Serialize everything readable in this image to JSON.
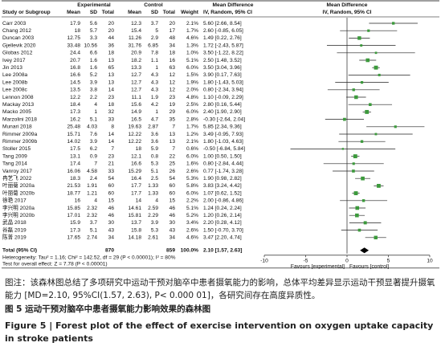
{
  "header": {
    "group_exp": "Experimental",
    "group_ctrl": "Control",
    "md_title": "Mean Difference",
    "md_plot_title": "Mean Difference",
    "columns": [
      "Study or Subgroup",
      "Mean",
      "SD",
      "Total",
      "Mean",
      "SD",
      "Total",
      "Weight",
      "IV, Random, 95% CI"
    ],
    "plot_subtitle": "IV, Random, 95% CI"
  },
  "table": {
    "rows": [
      {
        "cells": [
          "Carr 2003",
          "17.9",
          "5.6",
          "20",
          "12.3",
          "3.7",
          "20",
          "2.1%",
          "5.60 [2.66, 8.54]"
        ],
        "md": 5.6,
        "ci": [
          2.66,
          8.54
        ],
        "weight": 2.1
      },
      {
        "cells": [
          "Chang 2012",
          "18",
          "5.7",
          "20",
          "15.4",
          "5",
          "17",
          "1.7%",
          "2.60 [-0.85, 6.05]"
        ],
        "md": 2.6,
        "ci": [
          -0.85,
          6.05
        ],
        "weight": 1.7
      },
      {
        "cells": [
          "Duncan 2003",
          "12.75",
          "3.3",
          "44",
          "11.26",
          "2.9",
          "48",
          "4.6%",
          "1.49 [0.22, 2.76]"
        ],
        "md": 1.49,
        "ci": [
          0.22,
          2.76
        ],
        "weight": 4.6
      },
      {
        "cells": [
          "Gjellevik 2020",
          "33.48",
          "10.56",
          "36",
          "31.76",
          "6.85",
          "34",
          "1.3%",
          "1.72 [-2.43, 5.87]"
        ],
        "md": 1.72,
        "ci": [
          -2.43,
          5.87
        ],
        "weight": 1.3
      },
      {
        "cells": [
          "Globas 2012",
          "24.4",
          "6.6",
          "18",
          "20.9",
          "7.8",
          "18",
          "1.0%",
          "3.50 [-1.22, 8.22]"
        ],
        "md": 3.5,
        "ci": [
          -1.22,
          8.22
        ],
        "weight": 1.0
      },
      {
        "cells": [
          "Ivey 2017",
          "20.7",
          "1.6",
          "13",
          "18.2",
          "1.1",
          "16",
          "5.1%",
          "2.50 [1.48, 3.52]"
        ],
        "md": 2.5,
        "ci": [
          1.48,
          3.52
        ],
        "weight": 5.1
      },
      {
        "cells": [
          "Jin 2013",
          "16.8",
          "1.6",
          "65",
          "13.3",
          "1",
          "63",
          "6.0%",
          "3.50 [3.04, 3.96]"
        ],
        "md": 3.5,
        "ci": [
          3.04,
          3.96
        ],
        "weight": 6.0
      },
      {
        "cells": [
          "Lee 2008a",
          "16.6",
          "5.2",
          "13",
          "12.7",
          "4.3",
          "12",
          "1.5%",
          "3.90 [0.17, 7.63]"
        ],
        "md": 3.9,
        "ci": [
          0.17,
          7.63
        ],
        "weight": 1.5
      },
      {
        "cells": [
          "Lee 2008b",
          "14.5",
          "3.9",
          "13",
          "12.7",
          "4.3",
          "12",
          "1.9%",
          "1.80 [-1.43, 5.03]"
        ],
        "md": 1.8,
        "ci": [
          -1.43,
          5.03
        ],
        "weight": 1.9
      },
      {
        "cells": [
          "Lee 2008c",
          "13.5",
          "3.8",
          "14",
          "12.7",
          "4.3",
          "12",
          "2.0%",
          "0.80 [-2.34, 3.94]"
        ],
        "md": 0.8,
        "ci": [
          -2.34,
          3.94
        ],
        "weight": 2.0
      },
      {
        "cells": [
          "Lennon 2008",
          "12.2",
          "2.2",
          "23",
          "11.1",
          "1.9",
          "23",
          "4.8%",
          "1.10 [-0.09, 2.29]"
        ],
        "md": 1.1,
        "ci": [
          -0.09,
          2.29
        ],
        "weight": 4.8
      },
      {
        "cells": [
          "Mackay 2013",
          "18.4",
          "4",
          "18",
          "15.6",
          "4.2",
          "19",
          "2.5%",
          "2.80 [0.16, 5.44]"
        ],
        "md": 2.8,
        "ci": [
          0.16,
          5.44
        ],
        "weight": 2.5
      },
      {
        "cells": [
          "Macko 2005",
          "17.3",
          "1",
          "32",
          "14.9",
          "1",
          "29",
          "6.0%",
          "2.40 [1.90, 2.90]"
        ],
        "md": 2.4,
        "ci": [
          1.9,
          2.9
        ],
        "weight": 6.0
      },
      {
        "cells": [
          "Marzolini 2018",
          "16.2",
          "5.1",
          "33",
          "16.5",
          "4.7",
          "35",
          "2.8%",
          "-0.30 [-2.64, 2.04]"
        ],
        "md": -0.3,
        "ci": [
          -2.64,
          2.04
        ],
        "weight": 2.8
      },
      {
        "cells": [
          "Munari 2018",
          "25.48",
          "4.03",
          "8",
          "19.63",
          "2.87",
          "7",
          "1.7%",
          "5.85 [2.34, 9.36]"
        ],
        "md": 5.85,
        "ci": [
          2.34,
          9.36
        ],
        "weight": 1.7
      },
      {
        "cells": [
          "Rimmer 2009a",
          "15.71",
          "7.6",
          "14",
          "12.22",
          "3.6",
          "13",
          "1.2%",
          "3.49 [-0.95, 7.93]"
        ],
        "md": 3.49,
        "ci": [
          -0.95,
          7.93
        ],
        "weight": 1.2
      },
      {
        "cells": [
          "Rimmer 2009b",
          "14.02",
          "3.9",
          "14",
          "12.22",
          "3.6",
          "13",
          "2.1%",
          "1.80 [-1.03, 4.63]"
        ],
        "md": 1.8,
        "ci": [
          -1.03,
          4.63
        ],
        "weight": 2.1
      },
      {
        "cells": [
          "Stoller 2015",
          "17.5",
          "6.2",
          "7",
          "18",
          "5.9",
          "7",
          "0.6%",
          "-0.50 [-6.84, 5.84]"
        ],
        "md": -0.5,
        "ci": [
          -6.84,
          5.84
        ],
        "weight": 0.6
      },
      {
        "cells": [
          "Tang 2009",
          "13.1",
          "0.9",
          "23",
          "12.1",
          "0.8",
          "22",
          "6.0%",
          "1.00 [0.50, 1.50]"
        ],
        "md": 1.0,
        "ci": [
          0.5,
          1.5
        ],
        "weight": 6.0
      },
      {
        "cells": [
          "Tang 2014",
          "17.4",
          "7",
          "21",
          "16.6",
          "5.3",
          "25",
          "1.6%",
          "0.80 [-2.84, 4.44]"
        ],
        "md": 0.8,
        "ci": [
          -2.84,
          4.44
        ],
        "weight": 1.6
      },
      {
        "cells": [
          "Vanroy 2017",
          "16.06",
          "4.58",
          "33",
          "15.29",
          "5.1",
          "26",
          "2.6%",
          "0.77 [-1.74, 3.28]"
        ],
        "md": 0.77,
        "ci": [
          -1.74,
          3.28
        ],
        "weight": 2.6
      },
      {
        "cells": [
          "冉艺飞 2022",
          "18.3",
          "2.4",
          "54",
          "16.4",
          "2.5",
          "54",
          "5.3%",
          "1.90 [0.98, 2.82]"
        ],
        "md": 1.9,
        "ci": [
          0.98,
          2.82
        ],
        "weight": 5.3
      },
      {
        "cells": [
          "叶丽菊 2020a",
          "21.53",
          "1.91",
          "60",
          "17.7",
          "1.33",
          "60",
          "5.8%",
          "3.83 [3.24, 4.42]"
        ],
        "md": 3.83,
        "ci": [
          3.24,
          4.42
        ],
        "weight": 5.8
      },
      {
        "cells": [
          "叶丽菊 2020b",
          "18.77",
          "1.21",
          "60",
          "17.7",
          "1.33",
          "60",
          "6.0%",
          "1.07 [0.62, 1.52]"
        ],
        "md": 1.07,
        "ci": [
          0.62,
          1.52
        ],
        "weight": 6.0
      },
      {
        "cells": [
          "徐艳 2017",
          "16",
          "4",
          "15",
          "14",
          "4",
          "15",
          "2.2%",
          "2.00 [-0.86, 4.86]"
        ],
        "md": 2.0,
        "ci": [
          -0.86,
          4.86
        ],
        "weight": 2.2
      },
      {
        "cells": [
          "李兴明 2020a",
          "15.85",
          "2.32",
          "46",
          "14.61",
          "2.59",
          "46",
          "5.1%",
          "1.24 [0.24, 2.24]"
        ],
        "md": 1.24,
        "ci": [
          0.24,
          2.24
        ],
        "weight": 5.1
      },
      {
        "cells": [
          "李兴明 2020b",
          "17.01",
          "2.32",
          "46",
          "15.81",
          "2.29",
          "46",
          "5.2%",
          "1.20 [0.26, 2.14]"
        ],
        "md": 1.2,
        "ci": [
          0.26,
          2.14
        ],
        "weight": 5.2
      },
      {
        "cells": [
          "武晶 2018",
          "15.9",
          "3.7",
          "30",
          "13.7",
          "3.9",
          "30",
          "3.4%",
          "2.20 [0.28, 4.12]"
        ],
        "md": 2.2,
        "ci": [
          0.28,
          4.12
        ],
        "weight": 3.4
      },
      {
        "cells": [
          "谷磊 2019",
          "17.3",
          "5.1",
          "43",
          "15.8",
          "5.3",
          "43",
          "2.6%",
          "1.50 [-0.70, 3.70]"
        ],
        "md": 1.5,
        "ci": [
          -0.7,
          3.7
        ],
        "weight": 2.6
      },
      {
        "cells": [
          "陈普 2019",
          "17.65",
          "2.74",
          "34",
          "14.18",
          "2.61",
          "34",
          "4.6%",
          "3.47 [2.20, 4.74]"
        ],
        "md": 3.47,
        "ci": [
          2.2,
          4.74
        ],
        "weight": 4.6
      }
    ],
    "total": {
      "label": "Total (95% CI)",
      "exp_total": "870",
      "ctrl_total": "859",
      "weight": "100.0%",
      "ci_label": "2.10 [1.57, 2.63]",
      "md": 2.1,
      "ci": [
        1.57,
        2.63
      ]
    },
    "heterogeneity": "Heterogeneity: Tau² = 1.16; Chi² = 142.52, df = 29 (P < 0.00001); I² = 80%",
    "overall_test": "Test for overall effect: Z = 7.78 (P < 0.00001)"
  },
  "axis": {
    "xlim": [
      -10,
      10
    ],
    "xticks": [
      -10,
      -5,
      0,
      5,
      10
    ],
    "favours_left": "Favours [experimental]",
    "favours_right": "Favours [control]"
  },
  "caption": {
    "note": "图注：该森林图总结了多项研究中运动干预对脑卒中患者摄氧能力的影响，总体平均差异显示运动干预显著提升摄氧能力 [MD=2.10, 95%CI(1.57, 2.63), P< 0.000 01]，各研究间存在高度异质性。",
    "figure_cn": "图 5   运动干预对脑卒中患者摄氧能力影响效果的森林图",
    "figure_en": "Figure 5  |  Forest plot of the effect of exercise intervention on oxygen uptake capacity in stroke patients"
  }
}
